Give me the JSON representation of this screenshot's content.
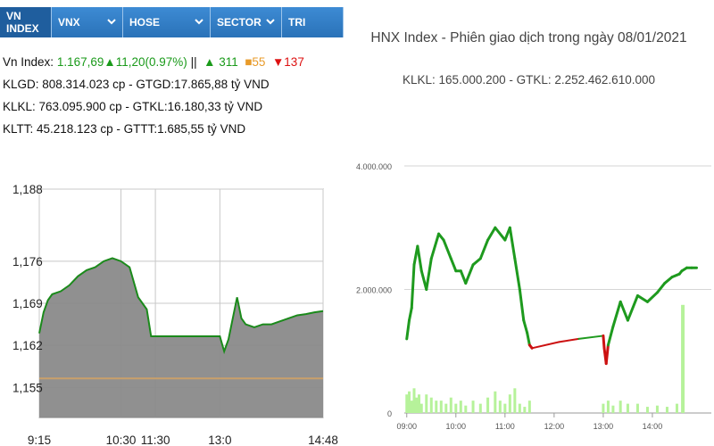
{
  "tabs": [
    {
      "label": "VN INDEX",
      "dropdown": false,
      "active": true
    },
    {
      "label": "VNX",
      "dropdown": true,
      "active": false
    },
    {
      "label": "HOSE",
      "dropdown": true,
      "active": false
    },
    {
      "label": "SECTOR",
      "dropdown": true,
      "active": false
    },
    {
      "label": "TRI",
      "dropdown": false,
      "active": false
    }
  ],
  "info": {
    "vn_label": "Vn Index:",
    "vn_value": "1.167,69",
    "vn_change": "▲11,20(0.97%)",
    "sep": "||",
    "up": "▲ 311",
    "ref": "■55",
    "down": "▼137",
    "klgd": "KLGD: 808.314.023 cp - GTGD:17.865,88 tỷ VND",
    "klkl": "KLKL: 763.095.900 cp - GTKL:16.180,33 tỷ VND",
    "kltt": "KLTT: 45.218.123 cp - GTTT:1.685,55 tỷ VND"
  },
  "colors": {
    "tab_bg": "#2f7fc9",
    "vn_line": "#1b8a1b",
    "vn_fill": "#8a8a8a",
    "ref_line": "#c9a06a",
    "hnx_up": "#1e9a1e",
    "hnx_down": "#cc1111",
    "volume": "#b6f29a"
  },
  "chart_data": [
    {
      "type": "area",
      "x_tick_labels": [
        "9:15",
        "10:30",
        "11:30",
        "13:0",
        "14:48"
      ],
      "y_tick_labels": [
        "1,188",
        "1,176",
        "1,169",
        "1,162",
        "1,155"
      ],
      "ylim": [
        1150,
        1188
      ],
      "reference": 1156.5,
      "series": [
        {
          "points": [
            [
              0,
              1164
            ],
            [
              1,
              1167.5
            ],
            [
              2,
              1169.5
            ],
            [
              3,
              1170.5
            ],
            [
              5,
              1171
            ],
            [
              7,
              1172
            ],
            [
              9,
              1173.5
            ],
            [
              11,
              1174.5
            ],
            [
              13,
              1175
            ],
            [
              15,
              1176
            ],
            [
              17,
              1176.5
            ],
            [
              19,
              1176
            ],
            [
              21,
              1175
            ],
            [
              23,
              1170
            ],
            [
              25,
              1168
            ],
            [
              26,
              1163.5
            ],
            [
              27,
              1163.5
            ],
            [
              40,
              1163.5
            ],
            [
              42,
              1163.5
            ],
            [
              43,
              1161
            ],
            [
              44,
              1163
            ],
            [
              45,
              1166.5
            ],
            [
              46,
              1170
            ],
            [
              47,
              1166.5
            ],
            [
              48,
              1165.5
            ],
            [
              50,
              1165
            ],
            [
              52,
              1165.5
            ],
            [
              54,
              1165.5
            ],
            [
              56,
              1166
            ],
            [
              58,
              1166.5
            ],
            [
              60,
              1167
            ],
            [
              62,
              1167.2
            ],
            [
              64,
              1167.5
            ],
            [
              66,
              1167.7
            ]
          ]
        }
      ]
    },
    {
      "type": "line",
      "title": "HNX Index - Phiên giao dịch trong ngày 08/01/2021",
      "subtitle": "KLKL: 165.000.200 - GTKL: 2.252.462.610.000",
      "y_tick_labels": [
        "4.000.000",
        "2.000.000",
        "0"
      ],
      "x_tick_labels": [
        "09:00",
        "10:00",
        "11:00",
        "12:00",
        "13:00",
        "14:00"
      ],
      "x_tick_hours": [
        9,
        10,
        11,
        12,
        13,
        14
      ],
      "ylim": [
        0,
        4000000
      ],
      "reference": 1200000,
      "series": [
        {
          "points": [
            [
              9.0,
              1200000
            ],
            [
              9.05,
              1500000
            ],
            [
              9.1,
              1700000
            ],
            [
              9.15,
              2400000
            ],
            [
              9.22,
              2700000
            ],
            [
              9.3,
              2300000
            ],
            [
              9.4,
              2000000
            ],
            [
              9.5,
              2500000
            ],
            [
              9.65,
              2900000
            ],
            [
              9.75,
              2800000
            ],
            [
              9.9,
              2500000
            ],
            [
              10.0,
              2300000
            ],
            [
              10.1,
              2300000
            ],
            [
              10.2,
              2100000
            ],
            [
              10.35,
              2400000
            ],
            [
              10.5,
              2500000
            ],
            [
              10.65,
              2800000
            ],
            [
              10.8,
              3000000
            ],
            [
              11.0,
              2800000
            ],
            [
              11.1,
              3000000
            ],
            [
              11.2,
              2500000
            ],
            [
              11.3,
              2000000
            ],
            [
              11.38,
              1500000
            ],
            [
              11.45,
              1300000
            ],
            [
              11.5,
              1100000
            ],
            [
              11.55,
              1050000
            ],
            [
              12.1,
              1150000
            ],
            [
              12.5,
              1200000
            ],
            [
              13.0,
              1250000
            ],
            [
              13.02,
              1050000
            ],
            [
              13.06,
              800000
            ],
            [
              13.1,
              1100000
            ],
            [
              13.2,
              1400000
            ],
            [
              13.35,
              1800000
            ],
            [
              13.5,
              1500000
            ],
            [
              13.7,
              1900000
            ],
            [
              13.9,
              1800000
            ],
            [
              14.1,
              1950000
            ],
            [
              14.25,
              2100000
            ],
            [
              14.4,
              2200000
            ],
            [
              14.55,
              2250000
            ],
            [
              14.6,
              2300000
            ],
            [
              14.7,
              2350000
            ],
            [
              14.8,
              2350000
            ],
            [
              14.9,
              2350000
            ]
          ]
        }
      ],
      "volume": [
        [
          9.0,
          300000
        ],
        [
          9.05,
          350000
        ],
        [
          9.1,
          200000
        ],
        [
          9.15,
          400000
        ],
        [
          9.2,
          250000
        ],
        [
          9.25,
          300000
        ],
        [
          9.3,
          150000
        ],
        [
          9.4,
          300000
        ],
        [
          9.5,
          250000
        ],
        [
          9.6,
          200000
        ],
        [
          9.7,
          200000
        ],
        [
          9.8,
          150000
        ],
        [
          9.9,
          250000
        ],
        [
          10.0,
          150000
        ],
        [
          10.1,
          200000
        ],
        [
          10.2,
          120000
        ],
        [
          10.35,
          200000
        ],
        [
          10.5,
          150000
        ],
        [
          10.65,
          250000
        ],
        [
          10.8,
          350000
        ],
        [
          10.9,
          200000
        ],
        [
          11.0,
          150000
        ],
        [
          11.1,
          300000
        ],
        [
          11.2,
          400000
        ],
        [
          11.3,
          150000
        ],
        [
          11.4,
          100000
        ],
        [
          11.5,
          200000
        ],
        [
          13.0,
          150000
        ],
        [
          13.1,
          200000
        ],
        [
          13.2,
          120000
        ],
        [
          13.35,
          200000
        ],
        [
          13.5,
          150000
        ],
        [
          13.7,
          150000
        ],
        [
          13.9,
          100000
        ],
        [
          14.1,
          120000
        ],
        [
          14.3,
          100000
        ],
        [
          14.5,
          150000
        ],
        [
          14.62,
          1750000
        ]
      ]
    }
  ]
}
